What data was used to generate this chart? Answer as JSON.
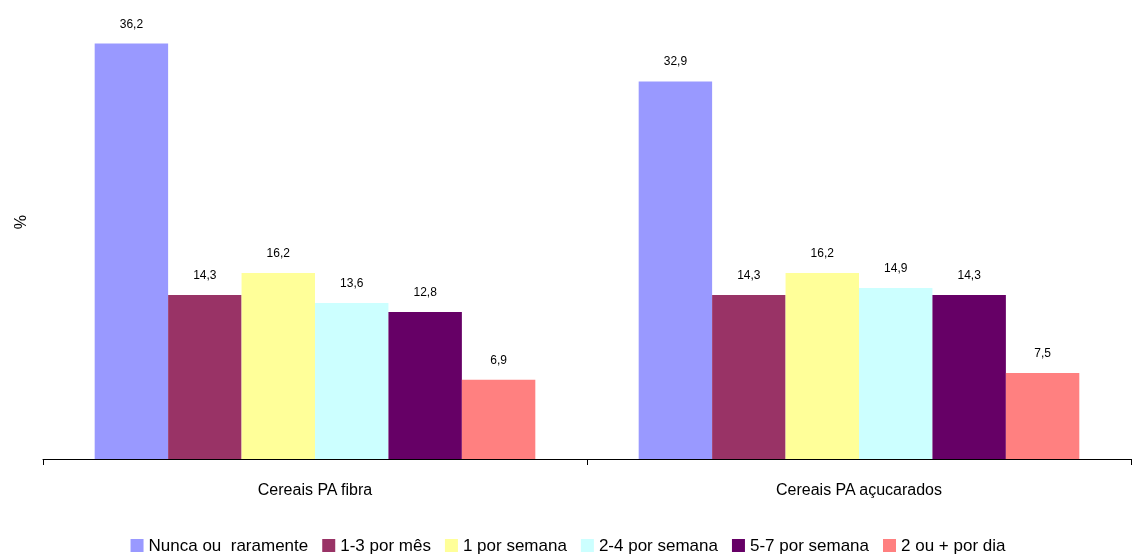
{
  "chart_data": {
    "type": "bar",
    "ylabel": "%",
    "categories": [
      "Cereais PA fibra",
      "Cereais PA açucarados"
    ],
    "series": [
      {
        "name": "Nunca ou  raramente",
        "color": "#9999ff",
        "values": [
          36.2,
          32.9
        ],
        "value_labels": [
          "36,2",
          "32,9"
        ]
      },
      {
        "name": "1-3 por mês",
        "color": "#993366",
        "values": [
          14.3,
          14.3
        ],
        "value_labels": [
          "14,3",
          "14,3"
        ]
      },
      {
        "name": "1 por semana",
        "color": "#ffff99",
        "values": [
          16.2,
          16.2
        ],
        "value_labels": [
          "16,2",
          "16,2"
        ]
      },
      {
        "name": "2-4 por semana",
        "color": "#ccffff",
        "values": [
          13.6,
          14.9
        ],
        "value_labels": [
          "13,6",
          "14,9"
        ]
      },
      {
        "name": "5-7 por semana",
        "color": "#660066",
        "values": [
          12.8,
          14.3
        ],
        "value_labels": [
          "12,8",
          "14,3"
        ]
      },
      {
        "name": "2 ou + por dia",
        "color": "#ff8080",
        "values": [
          6.9,
          7.5
        ],
        "value_labels": [
          "6,9",
          "7,5"
        ]
      }
    ],
    "legend": "bottom",
    "tick_labels": "x"
  }
}
